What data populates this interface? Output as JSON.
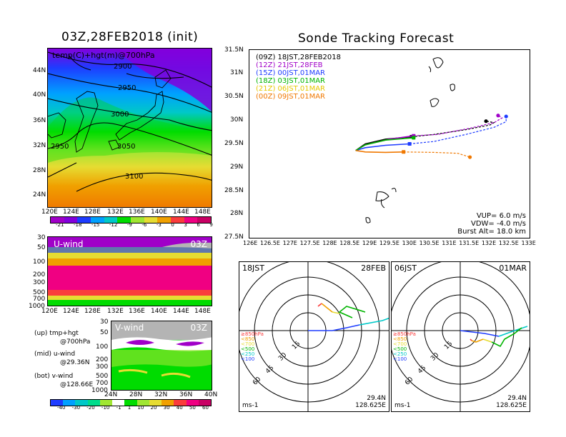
{
  "left": {
    "title": "03Z,28FEB2018 (init)",
    "map_label": "temp(C)+hgt(m)@700hPa",
    "contours": [
      "2900",
      "2950",
      "3000",
      "3050",
      "3100",
      "2950"
    ],
    "lat_ticks": [
      "44N",
      "40N",
      "36N",
      "32N",
      "28N",
      "24N"
    ],
    "lon_ticks": [
      "120E",
      "124E",
      "128E",
      "132E",
      "136E",
      "140E",
      "144E",
      "148E"
    ],
    "temp_scale": [
      "-21",
      "-18",
      "-15",
      "-12",
      "-9",
      "-6",
      "-3",
      "0",
      "3",
      "6",
      "9"
    ],
    "temp_colors": [
      "#a000c8",
      "#8200dc",
      "#1e3cff",
      "#00a0ff",
      "#00c8c8",
      "#00dc00",
      "#a0e632",
      "#e6dc32",
      "#f0a000",
      "#fa3c3c",
      "#f00082"
    ],
    "uwind": {
      "label": "U-wind",
      "time": "03Z",
      "p_ticks": [
        "30",
        "50",
        "100",
        "200",
        "300",
        "500",
        "700",
        "1000"
      ],
      "lon_ticks": [
        "120E",
        "124E",
        "128E",
        "132E",
        "136E",
        "140E",
        "144E",
        "148E"
      ]
    },
    "vwind": {
      "label": "V-wind",
      "time": "03Z",
      "p_ticks": [
        "30",
        "50",
        "100",
        "200",
        "300",
        "500",
        "700",
        "1000"
      ],
      "lat_ticks": [
        "24N",
        "28N",
        "32N",
        "36N",
        "40N"
      ]
    },
    "notes": [
      {
        "a": "(up) tmp+hgt",
        "b": "@700hPa"
      },
      {
        "a": "(mid) u-wind",
        "b": "@29.36N"
      },
      {
        "a": "(bot) v-wind",
        "b": "@128.66E"
      }
    ],
    "wind_scale": [
      "-40",
      "-30",
      "-20",
      "-10",
      "-1",
      "1",
      "10",
      "20",
      "30",
      "40",
      "50",
      "60"
    ],
    "wind_colors": [
      "#1e3cff",
      "#00a0ff",
      "#00c8c8",
      "#00dc8c",
      "#a0e632",
      "#ffffff",
      "#00dc00",
      "#a0e632",
      "#e6dc32",
      "#f0a000",
      "#fa3c3c",
      "#f00082"
    ]
  },
  "chart_data": {
    "type": "line",
    "title": "Sonde Tracking Forecast",
    "xlim": [
      126,
      133
    ],
    "ylim": [
      27.5,
      31.5
    ],
    "x_ticks": [
      "126E",
      "126.5E",
      "127E",
      "127.5E",
      "128E",
      "128.5E",
      "129E",
      "129.5E",
      "130E",
      "130.5E",
      "131E",
      "131.5E",
      "132E",
      "132.5E",
      "133E"
    ],
    "y_ticks": [
      "31.5N",
      "31N",
      "30.5N",
      "30N",
      "29.5N",
      "29N",
      "28.5N",
      "28N",
      "27.5N"
    ],
    "series": [
      {
        "name": "(09Z) 18JST,28FEB2018",
        "color": "#000000",
        "x": [
          128.66,
          128.9,
          129.4,
          130.05,
          130.6,
          131.4,
          132.0,
          132.1,
          131.9
        ],
        "y": [
          29.36,
          29.5,
          29.6,
          29.65,
          29.7,
          29.8,
          29.9,
          29.95,
          29.98
        ]
      },
      {
        "name": "(12Z) 21JST,28FEB",
        "color": "#a000c8",
        "x": [
          128.66,
          128.9,
          129.5,
          130.1,
          130.7,
          131.5,
          132.1,
          132.3,
          132.2
        ],
        "y": [
          29.36,
          29.48,
          29.6,
          29.67,
          29.7,
          29.83,
          29.95,
          30.05,
          30.1
        ]
      },
      {
        "name": "(15Z) 00JST,01MAR",
        "color": "#1e3cff",
        "x": [
          128.66,
          128.9,
          129.4,
          130.0,
          130.6,
          131.4,
          132.1,
          132.4,
          132.4
        ],
        "y": [
          29.36,
          29.42,
          29.47,
          29.5,
          29.55,
          29.7,
          29.85,
          29.97,
          30.08
        ]
      },
      {
        "name": "(18Z) 03JST,01MAR",
        "color": "#00b400",
        "x": [
          128.66,
          128.9,
          129.4,
          130.1
        ],
        "y": [
          29.36,
          29.48,
          29.58,
          29.63
        ]
      },
      {
        "name": "(21Z) 06JST,01MAR",
        "color": "#e6c800",
        "x": [],
        "y": []
      },
      {
        "name": "(00Z) 09JST,01MAR",
        "color": "#f07800",
        "x": [
          128.66,
          128.9,
          129.4,
          129.85,
          130.6,
          131.2,
          131.5
        ],
        "y": [
          29.36,
          29.33,
          29.32,
          29.33,
          29.32,
          29.3,
          29.22
        ]
      }
    ],
    "stats": [
      {
        "k": "VUP=",
        "v": "6.0 m/s"
      },
      {
        "k": "VDW=",
        "v": "-4.0 m/s"
      },
      {
        "k": "Burst Alt=",
        "v": "18.0 km"
      }
    ]
  },
  "hodographs": [
    {
      "time": "18JST",
      "date": "28FEB",
      "lat": "29.4N",
      "lon": "128.625E",
      "unit": "ms-1",
      "ring_labels": [
        "15",
        "30",
        "45",
        "60"
      ],
      "legend": [
        {
          "t": "≥850hPa",
          "c": "#fa3c3c"
        },
        {
          "t": "<850",
          "c": "#f0a000"
        },
        {
          "t": "<700",
          "c": "#e6dc32"
        },
        {
          "t": "<500",
          "c": "#00b400"
        },
        {
          "t": "<250",
          "c": "#00c8c8"
        },
        {
          "t": "<100",
          "c": "#1e3cff"
        }
      ]
    },
    {
      "time": "06JST",
      "date": "01MAR",
      "lat": "29.4N",
      "lon": "128.625E",
      "unit": "ms-1",
      "ring_labels": [
        "15",
        "30",
        "45",
        "60"
      ],
      "legend": [
        {
          "t": "≥850hPa",
          "c": "#fa3c3c"
        },
        {
          "t": "<850",
          "c": "#f0a000"
        },
        {
          "t": "<700",
          "c": "#e6dc32"
        },
        {
          "t": "<500",
          "c": "#00b400"
        },
        {
          "t": "<250",
          "c": "#00c8c8"
        },
        {
          "t": "<100",
          "c": "#1e3cff"
        }
      ]
    }
  ]
}
